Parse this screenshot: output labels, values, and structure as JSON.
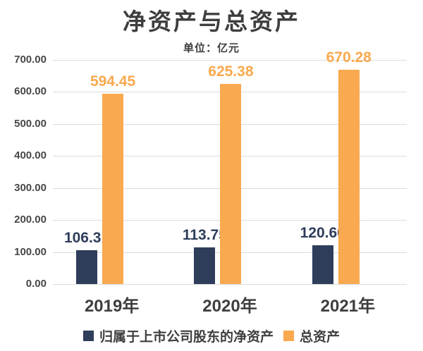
{
  "chart_data": {
    "type": "bar",
    "title": "净资产与总资产",
    "subtitle": "单位：亿元",
    "categories": [
      "2019年",
      "2020年",
      "2021年"
    ],
    "series": [
      {
        "name": "归属于上市公司股东的净资产",
        "color": "#2e3d5a",
        "values": [
          106.31,
          113.75,
          120.6
        ],
        "labels": [
          "106.31",
          "113.75",
          "120.60"
        ]
      },
      {
        "name": "总资产",
        "color": "#f9a94f",
        "values": [
          594.45,
          625.38,
          670.28
        ],
        "labels": [
          "594.45",
          "625.38",
          "670.28"
        ]
      }
    ],
    "ylim": [
      0,
      700
    ],
    "ytick_step": 100,
    "ytick_labels": [
      "0.00",
      "100.00",
      "200.00",
      "300.00",
      "400.00",
      "500.00",
      "600.00",
      "700.00"
    ],
    "grid": true,
    "legend_position": "bottom"
  },
  "colors": {
    "net_assets": "#2e3d5a",
    "total_assets": "#f9a94f",
    "text": "#3e3e3e",
    "gridline": "#dcdcdc"
  }
}
